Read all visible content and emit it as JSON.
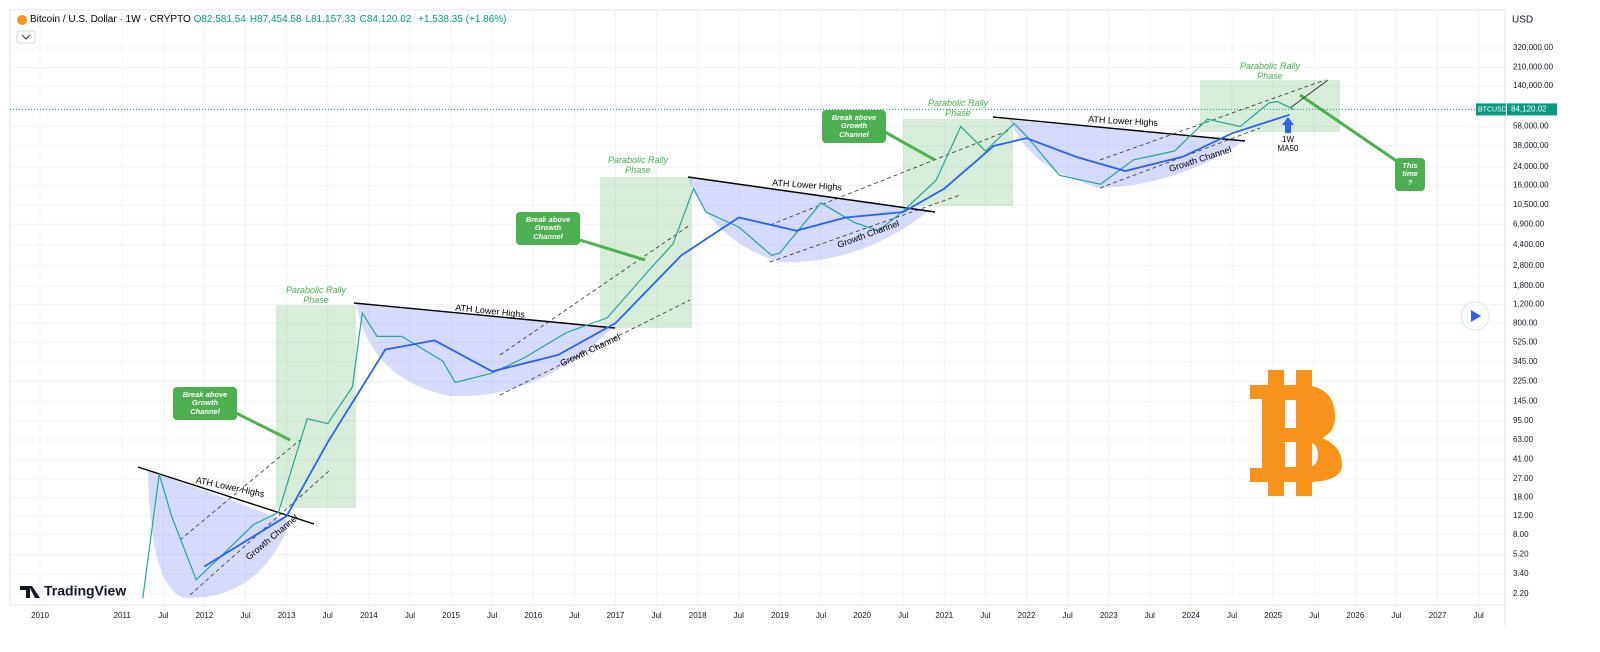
{
  "chart_data": {
    "type": "line",
    "title": "Bitcoin / U.S. Dollar · 1W · CRYPTO",
    "ohlc": [
      "O82,581.54",
      "H87,454.58",
      "L81,157.33",
      "C84,120.02"
    ],
    "change": "+1,538.35 (+1.86%)",
    "currency": "USD",
    "watermark": "TradingView",
    "log_scale": true,
    "grid": true,
    "last_price": {
      "value": 84120.02,
      "label": "84,120.02"
    },
    "xlim": [
      2009.635,
      2027.82
    ],
    "ylim": [
      1.73,
      733000
    ],
    "xticks": [
      {
        "value": 2010,
        "label": "2010"
      },
      {
        "value": 2011,
        "label": "2011"
      },
      {
        "value": 2011.5,
        "label": "Jul"
      },
      {
        "value": 2012,
        "label": "2012"
      },
      {
        "value": 2012.5,
        "label": "Jul"
      },
      {
        "value": 2013,
        "label": "2013"
      },
      {
        "value": 2013.5,
        "label": "Jul"
      },
      {
        "value": 2014,
        "label": "2014"
      },
      {
        "value": 2014.5,
        "label": "Jul"
      },
      {
        "value": 2015,
        "label": "2015"
      },
      {
        "value": 2015.5,
        "label": "Jul"
      },
      {
        "value": 2016,
        "label": "2016"
      },
      {
        "value": 2016.5,
        "label": "Jul"
      },
      {
        "value": 2017,
        "label": "2017"
      },
      {
        "value": 2017.5,
        "label": "Jul"
      },
      {
        "value": 2018,
        "label": "2018"
      },
      {
        "value": 2018.5,
        "label": "Jul"
      },
      {
        "value": 2019,
        "label": "2019"
      },
      {
        "value": 2019.5,
        "label": "Jul"
      },
      {
        "value": 2020,
        "label": "2020"
      },
      {
        "value": 2020.5,
        "label": "Jul"
      },
      {
        "value": 2021,
        "label": "2021"
      },
      {
        "value": 2021.5,
        "label": "Jul"
      },
      {
        "value": 2022,
        "label": "2022"
      },
      {
        "value": 2022.5,
        "label": "Jul"
      },
      {
        "value": 2023,
        "label": "2023"
      },
      {
        "value": 2023.5,
        "label": "Jul"
      },
      {
        "value": 2024,
        "label": "2024"
      },
      {
        "value": 2024.5,
        "label": "Jul"
      },
      {
        "value": 2025,
        "label": "2025"
      },
      {
        "value": 2025.5,
        "label": "Jul"
      },
      {
        "value": 2026,
        "label": "2026"
      },
      {
        "value": 2026.5,
        "label": "Jul"
      },
      {
        "value": 2027,
        "label": "2027"
      },
      {
        "value": 2027.5,
        "label": "Jul"
      }
    ],
    "yticks": [
      {
        "value": 320000,
        "label": "320,000.00"
      },
      {
        "value": 210000,
        "label": "210,000.00"
      },
      {
        "value": 140000,
        "label": "140,000.00"
      },
      {
        "value": 58000,
        "label": "58,000.00"
      },
      {
        "value": 38000,
        "label": "38,000.00"
      },
      {
        "value": 24000,
        "label": "24,000.00"
      },
      {
        "value": 16000,
        "label": "16,000.00"
      },
      {
        "value": 10500,
        "label": "10,500.00"
      },
      {
        "value": 6900,
        "label": "6,900.00"
      },
      {
        "value": 4400,
        "label": "4,400.00"
      },
      {
        "value": 2800,
        "label": "2,800.00"
      },
      {
        "value": 1800,
        "label": "1,800.00"
      },
      {
        "value": 1200,
        "label": "1,200.00"
      },
      {
        "value": 800,
        "label": "800.00"
      },
      {
        "value": 525,
        "label": "525.00"
      },
      {
        "value": 345,
        "label": "345.00"
      },
      {
        "value": 225,
        "label": "225.00"
      },
      {
        "value": 145,
        "label": "145.00"
      },
      {
        "value": 95,
        "label": "95.00"
      },
      {
        "value": 63,
        "label": "63.00"
      },
      {
        "value": 41,
        "label": "41.00"
      },
      {
        "value": 27,
        "label": "27.00"
      },
      {
        "value": 18,
        "label": "18.00"
      },
      {
        "value": 12,
        "label": "12.00"
      },
      {
        "value": 8,
        "label": "8.00"
      },
      {
        "value": 5.2,
        "label": "5.20"
      },
      {
        "value": 3.4,
        "label": "3.40"
      },
      {
        "value": 2.2,
        "label": "2.20"
      }
    ],
    "series": [
      {
        "name": "BTCUSD",
        "color": "#26a69a",
        "x": [
          2011.25,
          2011.45,
          2011.6,
          2011.9,
          2012.2,
          2012.6,
          2012.9,
          2013.25,
          2013.5,
          2013.8,
          2013.92,
          2014.1,
          2014.4,
          2014.9,
          2015.05,
          2015.5,
          2015.9,
          2016.4,
          2016.9,
          2017.4,
          2017.7,
          2017.95,
          2018.1,
          2018.5,
          2018.9,
          2019.0,
          2019.5,
          2019.9,
          2020.2,
          2020.5,
          2020.9,
          2021.2,
          2021.5,
          2021.85,
          2022.0,
          2022.4,
          2022.9,
          2023.3,
          2023.8,
          2024.2,
          2024.6,
          2024.95,
          2025.05,
          2025.25
        ],
        "values": [
          2,
          30,
          12,
          3,
          5,
          10,
          13,
          100,
          90,
          200,
          1000,
          600,
          600,
          350,
          220,
          270,
          380,
          650,
          900,
          2500,
          4500,
          15000,
          9000,
          6500,
          3500,
          3700,
          11000,
          7200,
          6000,
          9200,
          18000,
          58000,
          34000,
          62000,
          47000,
          20000,
          16500,
          28000,
          34000,
          68000,
          58000,
          97000,
          100000,
          84120.02
        ]
      },
      {
        "name": "1W MA50",
        "color": "#2962ff",
        "x": [
          2012.0,
          2013.0,
          2013.5,
          2014.2,
          2014.8,
          2015.5,
          2016.3,
          2017.0,
          2017.8,
          2018.5,
          2019.2,
          2019.8,
          2020.5,
          2021.0,
          2021.6,
          2022.0,
          2022.6,
          2023.2,
          2023.9,
          2024.5,
          2025.2
        ],
        "values": [
          4,
          12,
          60,
          450,
          550,
          280,
          400,
          800,
          3500,
          8000,
          6000,
          8000,
          9000,
          15000,
          38000,
          45000,
          30000,
          22000,
          30000,
          50000,
          75000
        ]
      }
    ],
    "annotations": [
      "Parabolic Rally Phase",
      "Parabolic Rally Phase",
      "Parabolic Rally Phase",
      "Parabolic Rally Phase",
      "Break above Growth Channel",
      "Break above Growth Channel",
      "Break above Growth Channel",
      "This time ?",
      "ATH Lower Highs",
      "ATH Lower Highs",
      "ATH Lower Highs",
      "ATH Lower Highs",
      "Growth Channel",
      "Growth Channel",
      "Growth Channel",
      "Growth Channel"
    ]
  }
}
